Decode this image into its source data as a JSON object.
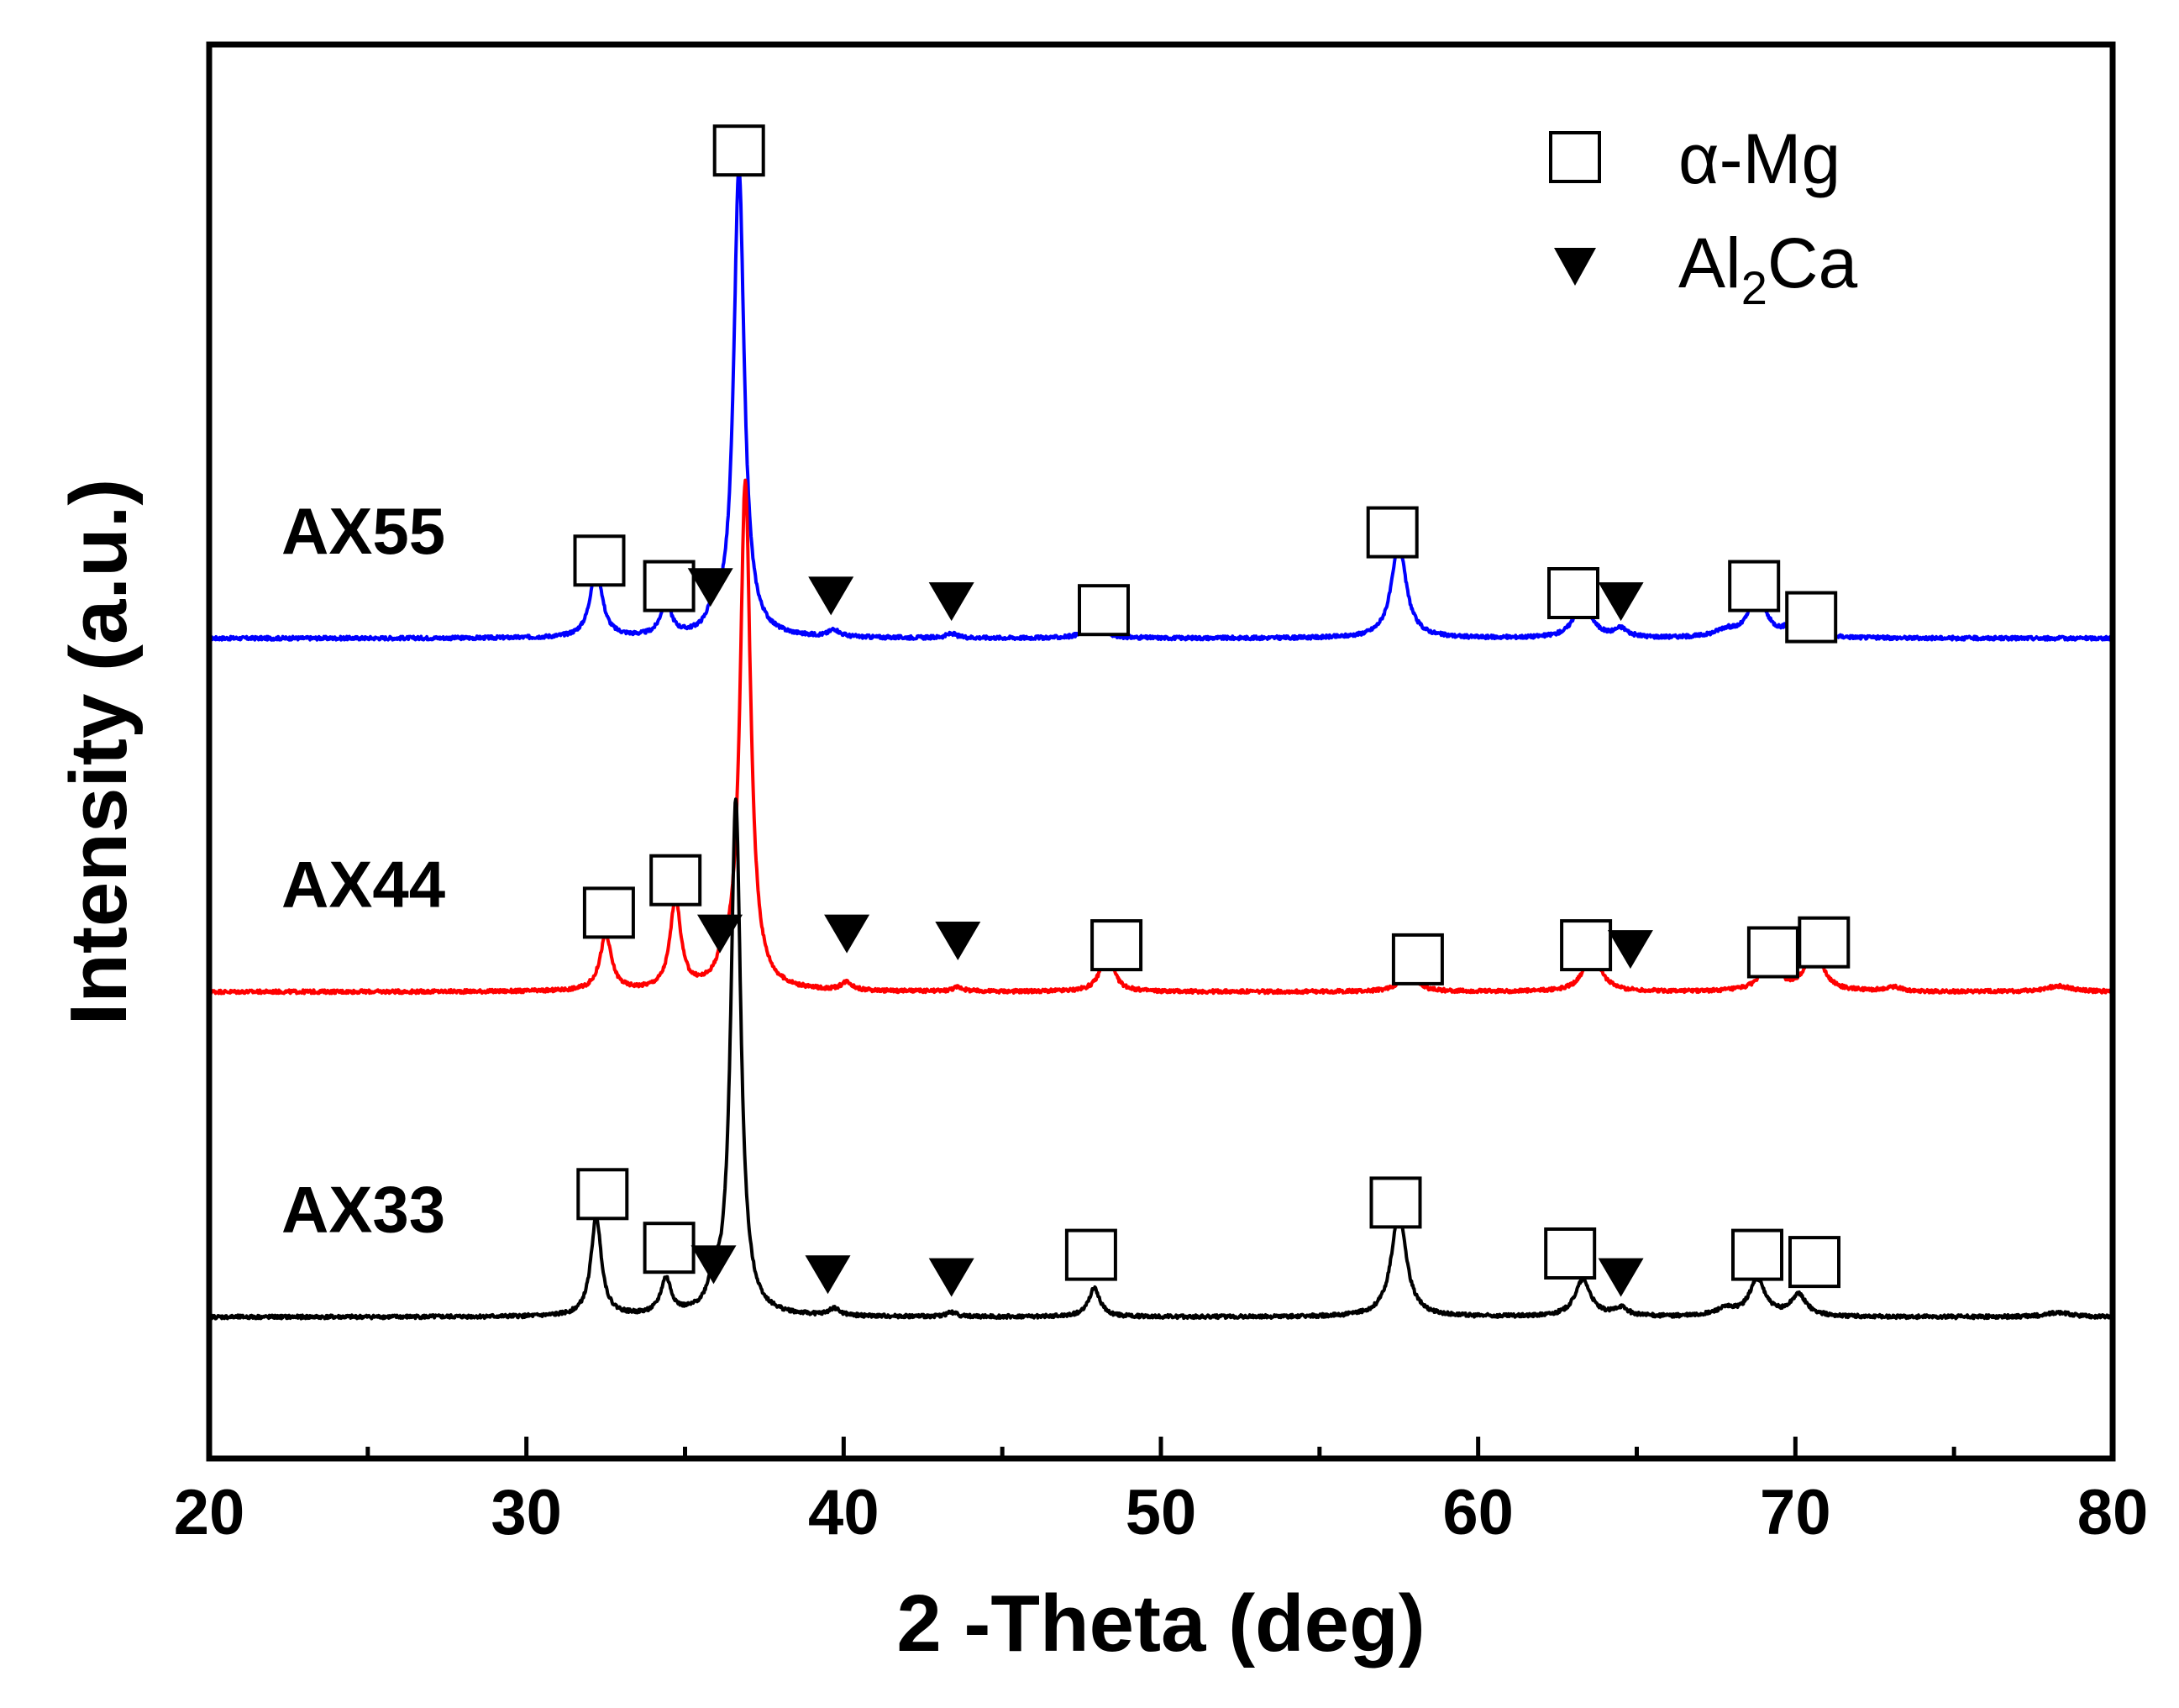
{
  "chart_data": {
    "type": "line",
    "title": "",
    "xlabel": "2 -Theta (deg)",
    "ylabel": "Intensity (a.u.)",
    "xlim": [
      20,
      80
    ],
    "xticks": [
      20,
      30,
      40,
      50,
      60,
      70,
      80
    ],
    "xtick_labels": [
      "20",
      "30",
      "40",
      "50",
      "60",
      "70",
      "80"
    ],
    "ylim": [
      0,
      100
    ],
    "yticks_shown": false,
    "legend": [
      {
        "name": "α-Mg",
        "marker": "open-square"
      },
      {
        "name": "Al2Ca",
        "name_base": "Al",
        "name_sub": "2",
        "name_tail": "Ca",
        "marker": "filled-down-triangle"
      }
    ],
    "series": [
      {
        "name": "AX55",
        "color": "#0000ff",
        "baseline": 58,
        "peaks": [
          {
            "x": 32.2,
            "h": 5.1,
            "w": 0.22
          },
          {
            "x": 34.4,
            "h": 2.4,
            "w": 0.2
          },
          {
            "x": 35.9,
            "h": 1.6,
            "w": 0.18
          },
          {
            "x": 36.7,
            "h": 33.2,
            "w": 0.2
          },
          {
            "x": 39.7,
            "h": 0.5,
            "w": 0.2
          },
          {
            "x": 43.4,
            "h": 0.3,
            "w": 0.2
          },
          {
            "x": 47.9,
            "h": 1.8,
            "w": 0.22
          },
          {
            "x": 57.5,
            "h": 6.6,
            "w": 0.28
          },
          {
            "x": 63.3,
            "h": 2.8,
            "w": 0.3
          },
          {
            "x": 64.5,
            "h": 0.6,
            "w": 0.25
          },
          {
            "x": 67.8,
            "h": 0.5,
            "w": 0.4
          },
          {
            "x": 68.8,
            "h": 3.2,
            "w": 0.3
          },
          {
            "x": 70.1,
            "h": 1.7,
            "w": 0.3
          }
        ]
      },
      {
        "name": "AX44",
        "color": "#ff0000",
        "baseline": 33,
        "peaks": [
          {
            "x": 32.5,
            "h": 3.9,
            "w": 0.22
          },
          {
            "x": 34.7,
            "h": 6.4,
            "w": 0.2
          },
          {
            "x": 36.2,
            "h": 1.5,
            "w": 0.18
          },
          {
            "x": 36.9,
            "h": 36.0,
            "w": 0.2
          },
          {
            "x": 40.1,
            "h": 0.6,
            "w": 0.2
          },
          {
            "x": 43.6,
            "h": 0.3,
            "w": 0.2
          },
          {
            "x": 48.3,
            "h": 2.8,
            "w": 0.24
          },
          {
            "x": 57.8,
            "h": 1.4,
            "w": 0.3
          },
          {
            "x": 63.6,
            "h": 3.0,
            "w": 0.3
          },
          {
            "x": 69.2,
            "h": 2.4,
            "w": 0.3
          },
          {
            "x": 70.6,
            "h": 2.9,
            "w": 0.32
          },
          {
            "x": 73.1,
            "h": 0.3,
            "w": 0.3
          },
          {
            "x": 78.3,
            "h": 0.4,
            "w": 0.5
          }
        ]
      },
      {
        "name": "AX33",
        "color": "#000000",
        "baseline": 10,
        "peaks": [
          {
            "x": 32.2,
            "h": 7.0,
            "w": 0.2
          },
          {
            "x": 34.4,
            "h": 2.5,
            "w": 0.2
          },
          {
            "x": 35.9,
            "h": 1.8,
            "w": 0.18
          },
          {
            "x": 36.6,
            "h": 36.5,
            "w": 0.19
          },
          {
            "x": 39.7,
            "h": 0.5,
            "w": 0.2
          },
          {
            "x": 43.4,
            "h": 0.3,
            "w": 0.2
          },
          {
            "x": 47.9,
            "h": 2.0,
            "w": 0.22
          },
          {
            "x": 57.5,
            "h": 7.4,
            "w": 0.28
          },
          {
            "x": 63.3,
            "h": 2.6,
            "w": 0.3
          },
          {
            "x": 64.5,
            "h": 0.6,
            "w": 0.25
          },
          {
            "x": 67.8,
            "h": 0.5,
            "w": 0.4
          },
          {
            "x": 68.8,
            "h": 2.6,
            "w": 0.3
          },
          {
            "x": 70.1,
            "h": 1.5,
            "w": 0.3
          },
          {
            "x": 78.3,
            "h": 0.3,
            "w": 0.5
          }
        ]
      }
    ],
    "annotations": {
      "alpha_mg_squares": [
        {
          "series": "AX55",
          "x": 32.3,
          "y": 63.5
        },
        {
          "series": "AX55",
          "x": 34.5,
          "y": 61.7
        },
        {
          "series": "AX55",
          "x": 36.7,
          "y": 92.5
        },
        {
          "series": "AX55",
          "x": 48.2,
          "y": 60.0
        },
        {
          "series": "AX55",
          "x": 57.3,
          "y": 65.5
        },
        {
          "series": "AX55",
          "x": 63.0,
          "y": 61.2
        },
        {
          "series": "AX55",
          "x": 68.7,
          "y": 61.7
        },
        {
          "series": "AX55",
          "x": 70.5,
          "y": 59.5
        },
        {
          "series": "AX44",
          "x": 32.6,
          "y": 38.6
        },
        {
          "series": "AX44",
          "x": 34.7,
          "y": 40.9
        },
        {
          "series": "AX44",
          "x": 48.6,
          "y": 36.3
        },
        {
          "series": "AX44",
          "x": 58.1,
          "y": 35.3
        },
        {
          "series": "AX44",
          "x": 63.4,
          "y": 36.3
        },
        {
          "series": "AX44",
          "x": 69.3,
          "y": 35.8
        },
        {
          "series": "AX44",
          "x": 70.9,
          "y": 36.5
        },
        {
          "series": "AX33",
          "x": 32.4,
          "y": 18.7
        },
        {
          "series": "AX33",
          "x": 34.5,
          "y": 14.9
        },
        {
          "series": "AX33",
          "x": 47.8,
          "y": 14.4
        },
        {
          "series": "AX33",
          "x": 57.4,
          "y": 18.1
        },
        {
          "series": "AX33",
          "x": 62.9,
          "y": 14.5
        },
        {
          "series": "AX33",
          "x": 68.8,
          "y": 14.4
        },
        {
          "series": "AX33",
          "x": 70.6,
          "y": 13.9
        }
      ],
      "al2ca_triangles": [
        {
          "series": "AX55",
          "x": 35.8,
          "y": 61.6
        },
        {
          "series": "AX55",
          "x": 39.6,
          "y": 61.0
        },
        {
          "series": "AX55",
          "x": 43.4,
          "y": 60.6
        },
        {
          "series": "AX55",
          "x": 64.5,
          "y": 60.6
        },
        {
          "series": "AX44",
          "x": 36.1,
          "y": 37.1
        },
        {
          "series": "AX44",
          "x": 40.1,
          "y": 37.1
        },
        {
          "series": "AX44",
          "x": 43.6,
          "y": 36.6
        },
        {
          "series": "AX44",
          "x": 64.8,
          "y": 36.0
        },
        {
          "series": "AX33",
          "x": 35.9,
          "y": 13.7
        },
        {
          "series": "AX33",
          "x": 39.5,
          "y": 13.0
        },
        {
          "series": "AX33",
          "x": 43.4,
          "y": 12.8
        },
        {
          "series": "AX33",
          "x": 64.5,
          "y": 12.8
        }
      ]
    }
  }
}
